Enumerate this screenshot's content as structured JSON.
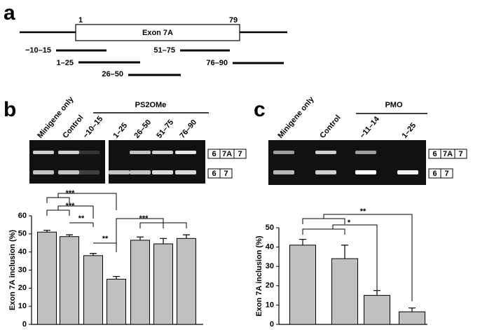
{
  "panels": {
    "a": "a",
    "b": "b",
    "c": "c"
  },
  "diagram": {
    "start": "1",
    "end": "79",
    "exon": "Exon 7A",
    "oligos": [
      "−10–15",
      "51–75",
      "1–25",
      "76–90",
      "26–50"
    ]
  },
  "gel_b": {
    "header": "PS2OMe",
    "lanes": [
      "Minigene only",
      "Control",
      "−10–15",
      "1–25",
      "26–50",
      "51–75",
      "76–90"
    ]
  },
  "gel_c": {
    "header": "PMO",
    "lanes": [
      "Minigene only",
      "Control",
      "−11–14",
      "1–25"
    ]
  },
  "isoforms": {
    "long": [
      "6",
      "7A",
      "7"
    ],
    "short": [
      "6",
      "7"
    ]
  },
  "chart_data": [
    {
      "type": "bar",
      "ylabel": "Exon 7A inclusion (%)",
      "values": [
        51,
        48.5,
        38,
        25,
        46.5,
        44.5,
        47.5
      ],
      "errors": [
        1,
        1,
        1.2,
        1.5,
        1.8,
        3,
        2
      ],
      "color": "#c0c0c0",
      "ylim": [
        0,
        60
      ],
      "yticks": [
        0,
        10,
        20,
        30,
        40,
        50,
        60
      ],
      "annotations": [
        "***",
        "***",
        "**",
        "**",
        "***"
      ]
    },
    {
      "type": "bar",
      "ylabel": "Exon 7A inclusion (%)",
      "values": [
        41,
        34,
        15,
        6.5
      ],
      "errors": [
        3,
        7,
        2.5,
        2
      ],
      "color": "#c0c0c0",
      "ylim": [
        0,
        50
      ],
      "yticks": [
        0,
        10,
        20,
        30,
        40,
        50
      ],
      "annotations": [
        "**",
        "*"
      ]
    }
  ]
}
